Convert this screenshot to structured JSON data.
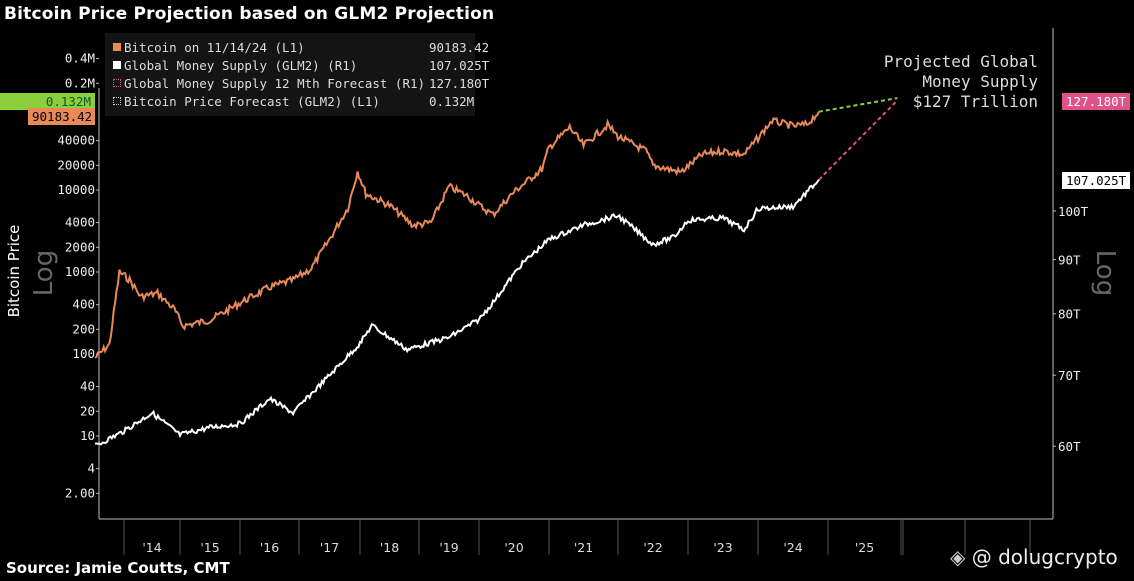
{
  "title": "Bitcoin Price Projection based on GLM2 Projection",
  "source": "Source: Jamie Coutts, CMT",
  "watermark": "@ dolugcrypto",
  "colors": {
    "bitcoin": "#e8895a",
    "glm2": "#ffffff",
    "glm2_forecast": "#e0508a",
    "btc_forecast": "#8ccf3a",
    "legend_bg": "#141414"
  },
  "legend": [
    {
      "label": "Bitcoin on 11/14/24 (L1)",
      "value": "90183.42",
      "color": "#e8895a"
    },
    {
      "label": "Global Money Supply (GLM2) (R1)",
      "value": "107.025T",
      "color": "#ffffff"
    },
    {
      "label": "Global Money Supply 12 Mth Forecast  (R1)",
      "value": "127.180T",
      "color": "#e0508a"
    },
    {
      "label": "Bitcoin Price Forecast (GLM2) (L1)",
      "value": "0.132M",
      "color": "#8ccf3a"
    }
  ],
  "annotation": {
    "line1": "Projected Global",
    "line2": "Money Supply",
    "line3": "$127 Trillion"
  },
  "tags": {
    "btc_forecast": "0.132M",
    "btc_last": "90183.42",
    "glm_forecast": "127.180T",
    "glm_last": "107.025T"
  },
  "chart_data": {
    "type": "line",
    "title": "Bitcoin Price Projection based on GLM2 Projection",
    "ylabel_left": "Bitcoin Price",
    "left_scale_label": "Log",
    "right_scale_label": "Log",
    "left_ticks": [
      "0.4M",
      "0.2M",
      "40000",
      "20000",
      "10000",
      "4000",
      "2000",
      "1000",
      "400",
      "200",
      "100",
      "40",
      "20",
      "10",
      "4",
      "2.00"
    ],
    "left_tick_values": [
      400000,
      200000,
      40000,
      20000,
      10000,
      4000,
      2000,
      1000,
      400,
      200,
      100,
      40,
      20,
      10,
      4,
      2
    ],
    "right_ticks": [
      "100T",
      "90T",
      "80T",
      "70T",
      "60T"
    ],
    "right_tick_values": [
      100,
      90,
      80,
      70,
      60
    ],
    "x_ticks": [
      "'14",
      "'15",
      "'16",
      "'17",
      "'18",
      "'19",
      "'20",
      "'21",
      "'22",
      "'23",
      "'24",
      "'25"
    ],
    "left_scale": "log",
    "right_scale": "log",
    "grid": false,
    "legend_position": "top-left",
    "series": [
      {
        "name": "Bitcoin on 11/14/24 (L1)",
        "axis": "left",
        "color": "#e8895a",
        "x": [
          2013.5,
          2013.75,
          2013.92,
          2014.1,
          2014.3,
          2014.6,
          2014.9,
          2015.05,
          2015.5,
          2015.9,
          2016.0,
          2016.5,
          2016.9,
          2017.2,
          2017.5,
          2017.8,
          2017.96,
          2018.1,
          2018.5,
          2018.9,
          2019.2,
          2019.5,
          2019.8,
          2020.2,
          2020.5,
          2020.9,
          2021.0,
          2021.3,
          2021.5,
          2021.85,
          2022.0,
          2022.4,
          2022.5,
          2022.9,
          2023.2,
          2023.5,
          2023.8,
          2024.0,
          2024.2,
          2024.5,
          2024.7,
          2024.87
        ],
        "y": [
          90,
          130,
          1000,
          800,
          500,
          550,
          350,
          220,
          260,
          380,
          420,
          650,
          800,
          1100,
          2500,
          6000,
          17000,
          9000,
          6500,
          3700,
          4000,
          11000,
          8500,
          5000,
          9500,
          18000,
          33000,
          58000,
          35000,
          62000,
          45000,
          30000,
          20000,
          16500,
          27000,
          30000,
          27000,
          43000,
          70000,
          60000,
          63000,
          90183.42
        ]
      },
      {
        "name": "Global Money Supply (GLM2) (R1)",
        "axis": "right",
        "color": "#ffffff",
        "x": [
          2013.5,
          2014.0,
          2014.5,
          2015.0,
          2015.5,
          2016.0,
          2016.5,
          2016.9,
          2017.5,
          2018.0,
          2018.2,
          2018.8,
          2019.5,
          2020.0,
          2020.2,
          2020.6,
          2021.0,
          2021.5,
          2022.0,
          2022.5,
          2022.8,
          2023.0,
          2023.5,
          2023.8,
          2024.0,
          2024.5,
          2024.87
        ],
        "y": [
          60,
          62,
          64.5,
          61.5,
          62.5,
          63,
          66.5,
          64.5,
          70,
          75,
          78,
          74,
          76,
          79,
          82,
          89,
          94,
          97,
          99,
          93,
          94.5,
          98,
          98.5,
          96,
          100.5,
          101,
          107.025
        ]
      },
      {
        "name": "Global Money Supply 12 Mth Forecast  (R1)",
        "axis": "right",
        "color": "#e0508a",
        "dashed": true,
        "x": [
          2024.87,
          2025.95
        ],
        "y": [
          107.025,
          127.18
        ]
      },
      {
        "name": "Bitcoin Price Forecast (GLM2) (L1)",
        "axis": "left",
        "color": "#8ccf3a",
        "dashed": true,
        "x": [
          2024.87,
          2025.95
        ],
        "y": [
          90183.42,
          132000
        ]
      }
    ]
  }
}
